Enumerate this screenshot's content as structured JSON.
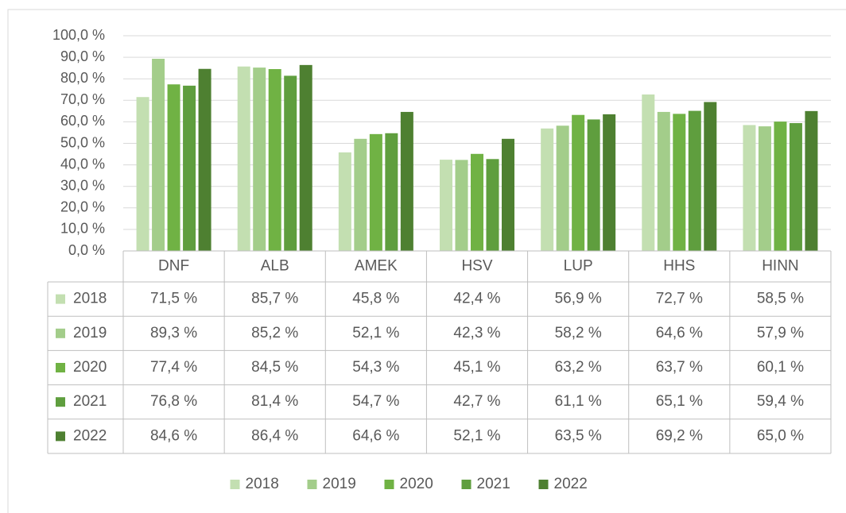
{
  "chart_data": {
    "type": "bar",
    "categories": [
      "DNF",
      "ALB",
      "AMEK",
      "HSV",
      "LUP",
      "HHS",
      "HINN"
    ],
    "series": [
      {
        "name": "2018",
        "color": "#c3dfb1",
        "values": [
          71.5,
          85.7,
          45.8,
          42.4,
          56.9,
          72.7,
          58.5
        ],
        "value_labels": [
          "71,5 %",
          "85,7 %",
          "45,8 %",
          "42,4 %",
          "56,9 %",
          "72,7 %",
          "58,5 %"
        ]
      },
      {
        "name": "2019",
        "color": "#a3cd8a",
        "values": [
          89.3,
          85.2,
          52.1,
          42.3,
          58.2,
          64.6,
          57.9
        ],
        "value_labels": [
          "89,3 %",
          "85,2 %",
          "52,1 %",
          "42,3 %",
          "58,2 %",
          "64,6 %",
          "57,9 %"
        ]
      },
      {
        "name": "2020",
        "color": "#70b244",
        "values": [
          77.4,
          84.5,
          54.3,
          45.1,
          63.2,
          63.7,
          60.1
        ],
        "value_labels": [
          "77,4 %",
          "84,5 %",
          "54,3 %",
          "45,1 %",
          "63,2 %",
          "63,7 %",
          "60,1 %"
        ]
      },
      {
        "name": "2021",
        "color": "#5f9e3e",
        "values": [
          76.8,
          81.4,
          54.7,
          42.7,
          61.1,
          65.1,
          59.4
        ],
        "value_labels": [
          "76,8 %",
          "81,4 %",
          "54,7 %",
          "42,7 %",
          "61,1 %",
          "65,1 %",
          "59,4 %"
        ]
      },
      {
        "name": "2022",
        "color": "#4e8031",
        "values": [
          84.6,
          86.4,
          64.6,
          52.1,
          63.5,
          69.2,
          65.0
        ],
        "value_labels": [
          "84,6 %",
          "86,4 %",
          "64,6 %",
          "52,1 %",
          "63,5 %",
          "69,2 %",
          "65,0 %"
        ]
      }
    ],
    "ylim": [
      0,
      100
    ],
    "yticks": [
      {
        "value": 0,
        "label": "0,0 %"
      },
      {
        "value": 10,
        "label": "10,0 %"
      },
      {
        "value": 20,
        "label": "20,0 %"
      },
      {
        "value": 30,
        "label": "30,0 %"
      },
      {
        "value": 40,
        "label": "40,0 %"
      },
      {
        "value": 50,
        "label": "50,0 %"
      },
      {
        "value": 60,
        "label": "60,0 %"
      },
      {
        "value": 70,
        "label": "70,0 %"
      },
      {
        "value": 80,
        "label": "80,0 %"
      },
      {
        "value": 90,
        "label": "90,0 %"
      },
      {
        "value": 100,
        "label": "100,0 %"
      }
    ],
    "grid": true,
    "legend": "bottom"
  }
}
